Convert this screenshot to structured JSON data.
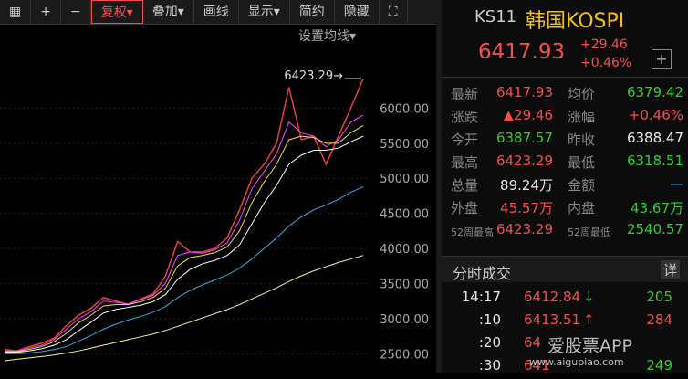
{
  "toolbar": [
    "复权▾",
    "叠加▾",
    "画线",
    "显示▾",
    "简约",
    "隐藏"
  ],
  "chart": {
    "type": "line",
    "ma_setting": "设置均线▾",
    "high_label": "6423.29→",
    "ylim": [
      2230,
      7190
    ],
    "yticks": [
      {
        "value": 2500,
        "label": "2500.00"
      },
      {
        "value": 3000,
        "label": "3000.00"
      },
      {
        "value": 3500,
        "label": "3500.00"
      },
      {
        "value": 4000,
        "label": "4000.00"
      },
      {
        "value": 4500,
        "label": "4500.00"
      },
      {
        "value": 5000,
        "label": "5000.00"
      },
      {
        "value": 5500,
        "label": "5500.00"
      },
      {
        "value": 6000,
        "label": "6000.00"
      }
    ],
    "series": [
      {
        "color": "#e84040",
        "values": [
          2560,
          2540,
          2600,
          2650,
          2720,
          2900,
          3050,
          3150,
          3300,
          3250,
          3200,
          3280,
          3350,
          3600,
          4100,
          3950,
          3950,
          4000,
          4150,
          4550,
          5000,
          5200,
          5500,
          6300,
          5550,
          5600,
          5200,
          5600,
          6000,
          6417.93
        ]
      },
      {
        "color": "#ff40ff",
        "values": [
          2540,
          2540,
          2580,
          2620,
          2700,
          2850,
          3000,
          3100,
          3250,
          3230,
          3210,
          3270,
          3330,
          3500,
          3900,
          3950,
          3930,
          3980,
          4080,
          4400,
          4850,
          5100,
          5350,
          5800,
          5650,
          5600,
          5450,
          5550,
          5800,
          5900
        ]
      },
      {
        "color": "#f0e040",
        "values": [
          2530,
          2530,
          2560,
          2600,
          2670,
          2790,
          2940,
          3050,
          3180,
          3200,
          3200,
          3240,
          3300,
          3430,
          3750,
          3870,
          3900,
          3940,
          4020,
          4250,
          4650,
          4950,
          5200,
          5550,
          5600,
          5580,
          5500,
          5500,
          5650,
          5750
        ]
      },
      {
        "color": "#ffffff",
        "values": [
          2520,
          2520,
          2540,
          2570,
          2620,
          2700,
          2830,
          2950,
          3080,
          3130,
          3160,
          3190,
          3240,
          3340,
          3560,
          3700,
          3780,
          3830,
          3900,
          4050,
          4350,
          4650,
          4900,
          5200,
          5330,
          5400,
          5400,
          5430,
          5520,
          5600
        ]
      },
      {
        "color": "#30b0e0",
        "values": [
          2500,
          2500,
          2510,
          2530,
          2560,
          2600,
          2680,
          2760,
          2850,
          2920,
          2980,
          3030,
          3090,
          3170,
          3300,
          3400,
          3480,
          3550,
          3620,
          3720,
          3850,
          4000,
          4150,
          4320,
          4450,
          4550,
          4620,
          4700,
          4800,
          4880
        ]
      },
      {
        "color": "#f0f0a0",
        "values": [
          2400,
          2420,
          2440,
          2460,
          2480,
          2510,
          2540,
          2580,
          2620,
          2660,
          2700,
          2740,
          2780,
          2830,
          2890,
          2950,
          3010,
          3070,
          3130,
          3200,
          3280,
          3360,
          3440,
          3530,
          3610,
          3680,
          3740,
          3800,
          3850,
          3900
        ]
      }
    ]
  },
  "header": {
    "code": "KS11",
    "name": "韩国KOSPI",
    "price": "6417.93",
    "change": "+29.46",
    "change_pct": "+0.46%"
  },
  "quote": {
    "rows": [
      [
        "最新",
        "6417.93",
        "均价",
        "6379.42"
      ],
      [
        "涨跌",
        "▲29.46",
        "涨幅",
        "+0.46%"
      ],
      [
        "今开",
        "6387.57",
        "昨收",
        "6388.47"
      ],
      [
        "最高",
        "6423.29",
        "最低",
        "6318.51"
      ],
      [
        "总量",
        "89.24万",
        "金额",
        "—"
      ],
      [
        "外盘",
        "45.57万",
        "内盘",
        "43.67万"
      ],
      [
        "52周最高",
        "6423.29",
        "52周最低",
        "2540.57"
      ]
    ]
  },
  "trades": {
    "title": "分时成交",
    "detail": "详",
    "rows": [
      [
        "14:17",
        "6412.84",
        "↓",
        "205"
      ],
      [
        ":10",
        "6413.51",
        "↑",
        "284"
      ],
      [
        ":20",
        "64",
        "",
        ""
      ],
      [
        ":30",
        "641",
        "",
        "249"
      ]
    ]
  },
  "watermark": {
    "name": "爱股票APP",
    "url": "www.aigupiao.com"
  }
}
